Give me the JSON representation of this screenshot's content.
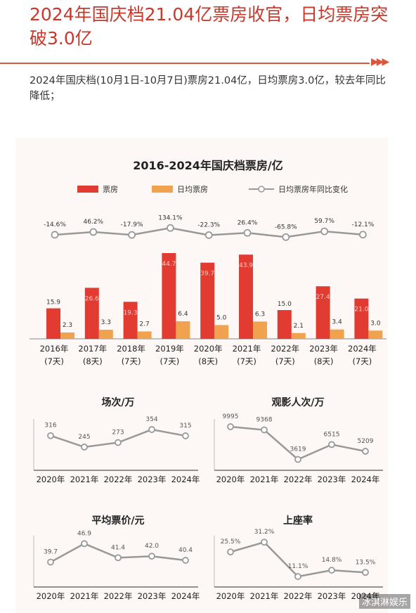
{
  "header": {
    "title": "2024年国庆档21.04亿票房收官，日均票房突破3.0亿",
    "arrows": "▶▶▶",
    "lead": "2024年国庆档(10月1日-10月7日)票房21.04亿，日均票房3.0亿，较去年同比降低；"
  },
  "watermark": "冰淇淋娱乐",
  "colors": {
    "box": "#e23b32",
    "daily": "#f0a24f",
    "line": "#999999",
    "accent": "#c9382a"
  },
  "chart_data": [
    {
      "type": "bar",
      "title": "2016-2024年国庆档票房/亿",
      "categories": [
        "2016年",
        "2017年",
        "2018年",
        "2019年",
        "2020年",
        "2021年",
        "2022年",
        "2023年",
        "2024年"
      ],
      "category_sub": [
        "(7天)",
        "(8天)",
        "(7天)",
        "(7天)",
        "(8天)",
        "(7天)",
        "(7天)",
        "(8天)",
        "(7天)"
      ],
      "series": [
        {
          "name": "票房",
          "values": [
            15.9,
            26.6,
            19.3,
            44.7,
            39.7,
            43.9,
            15.0,
            27.4,
            21.0
          ],
          "labels": [
            "15.9",
            "26.6",
            "19.3",
            "44.7",
            "39.7",
            "43.9",
            "15.0",
            "27.4",
            "21.0"
          ]
        },
        {
          "name": "日均票房",
          "values": [
            2.3,
            3.3,
            2.7,
            6.4,
            5.0,
            6.3,
            2.1,
            3.4,
            3.0
          ],
          "labels": [
            "2.3",
            "3.3",
            "2.7",
            "6.4",
            "5.0",
            "6.3",
            "2.1",
            "3.4",
            "3.0"
          ]
        },
        {
          "name": "日均票房年同比变化",
          "type": "line",
          "values": [
            -14.6,
            46.2,
            -17.9,
            134.1,
            -22.3,
            26.4,
            -65.8,
            59.7,
            -12.1
          ],
          "labels": [
            "-14.6%",
            "46.2%",
            "-17.9%",
            "134.1%",
            "-22.3%",
            "26.4%",
            "-65.8%",
            "59.7%",
            "-12.1%"
          ]
        }
      ],
      "legend": "top"
    },
    {
      "type": "line",
      "title": "场次/万",
      "categories": [
        "2020年",
        "2021年",
        "2022年",
        "2023年",
        "2024年"
      ],
      "values": [
        316,
        245,
        273,
        354,
        315
      ],
      "labels": [
        "316",
        "245",
        "273",
        "354",
        "315"
      ],
      "ylim": [
        100,
        420
      ]
    },
    {
      "type": "line",
      "title": "观影人次/万",
      "categories": [
        "2020年",
        "2021年",
        "2022年",
        "2023年",
        "2024年"
      ],
      "values": [
        9995,
        9368,
        3619,
        6515,
        5209
      ],
      "labels": [
        "9995",
        "9368",
        "3619",
        "6515",
        "5209"
      ],
      "ylim": [
        1500,
        11500
      ]
    },
    {
      "type": "line",
      "title": "平均票价/元",
      "categories": [
        "2020年",
        "2021年",
        "2022年",
        "2023年",
        "2024年"
      ],
      "values": [
        39.7,
        46.9,
        41.4,
        42.0,
        40.4
      ],
      "labels": [
        "39.7",
        "46.9",
        "41.4",
        "42.0",
        "40.4"
      ],
      "ylim": [
        30,
        50
      ]
    },
    {
      "type": "line",
      "title": "上座率",
      "categories": [
        "2020年",
        "2021年",
        "2022年",
        "2023年",
        "2024年"
      ],
      "values": [
        25.5,
        31.2,
        11.1,
        14.8,
        13.5
      ],
      "labels": [
        "25.5%",
        "31.2%",
        "11.1%",
        "14.8%",
        "13.5%"
      ],
      "ylim": [
        5,
        35
      ]
    }
  ]
}
